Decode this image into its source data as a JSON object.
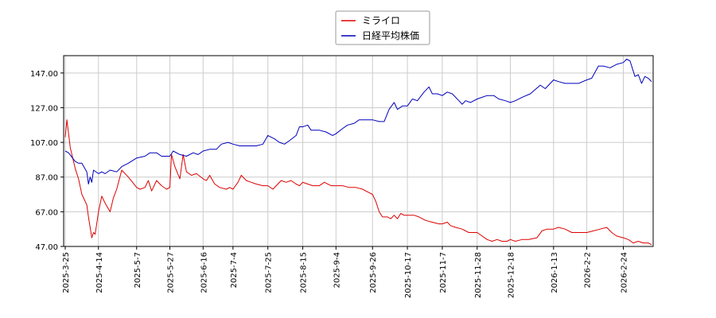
{
  "chart_data": {
    "type": "line",
    "title": "",
    "xlabel": "",
    "ylabel": "",
    "ylim": [
      47.0,
      157.0
    ],
    "yticks": [
      "47.00",
      "67.00",
      "87.00",
      "107.00",
      "127.00",
      "147.00"
    ],
    "xlim": [
      "2025-03-25",
      "2026-03-13"
    ],
    "xticks": [
      "2025-3-25",
      "2025-4-14",
      "2025-5-7",
      "2025-5-27",
      "2025-6-16",
      "2025-7-4",
      "2025-7-25",
      "2025-8-15",
      "2025-9-4",
      "2025-9-26",
      "2025-10-17",
      "2025-11-7",
      "2025-11-28",
      "2025-12-18",
      "2026-1-13",
      "2026-2-2",
      "2026-2-24"
    ],
    "grid": true,
    "legend_position": "top-center",
    "series": [
      {
        "name": "ミライロ",
        "color": "#dd0000",
        "points": [
          [
            "2025-03-25",
            110
          ],
          [
            "2025-03-26",
            120
          ],
          [
            "2025-03-28",
            104
          ],
          [
            "2025-03-31",
            92
          ],
          [
            "2025-04-02",
            86
          ],
          [
            "2025-04-04",
            77
          ],
          [
            "2025-04-07",
            71
          ],
          [
            "2025-04-08",
            64
          ],
          [
            "2025-04-09",
            58
          ],
          [
            "2025-04-10",
            52
          ],
          [
            "2025-04-11",
            55
          ],
          [
            "2025-04-12",
            54
          ],
          [
            "2025-04-14",
            67
          ],
          [
            "2025-04-16",
            76
          ],
          [
            "2025-04-18",
            72
          ],
          [
            "2025-04-21",
            67
          ],
          [
            "2025-04-23",
            75
          ],
          [
            "2025-04-25",
            80
          ],
          [
            "2025-04-28",
            91
          ],
          [
            "2025-05-02",
            87
          ],
          [
            "2025-05-07",
            81
          ],
          [
            "2025-05-09",
            80
          ],
          [
            "2025-05-12",
            81
          ],
          [
            "2025-05-14",
            85
          ],
          [
            "2025-05-16",
            79
          ],
          [
            "2025-05-19",
            85
          ],
          [
            "2025-05-22",
            82
          ],
          [
            "2025-05-25",
            80
          ],
          [
            "2025-05-27",
            81
          ],
          [
            "2025-05-28",
            100
          ],
          [
            "2025-05-30",
            93
          ],
          [
            "2025-06-02",
            86
          ],
          [
            "2025-06-04",
            100
          ],
          [
            "2025-06-06",
            90
          ],
          [
            "2025-06-09",
            88
          ],
          [
            "2025-06-12",
            89
          ],
          [
            "2025-06-16",
            86
          ],
          [
            "2025-06-18",
            85
          ],
          [
            "2025-06-20",
            88
          ],
          [
            "2025-06-23",
            83
          ],
          [
            "2025-06-26",
            81
          ],
          [
            "2025-06-30",
            80
          ],
          [
            "2025-07-02",
            81
          ],
          [
            "2025-07-04",
            80
          ],
          [
            "2025-07-07",
            84
          ],
          [
            "2025-07-09",
            88
          ],
          [
            "2025-07-12",
            85
          ],
          [
            "2025-07-15",
            84
          ],
          [
            "2025-07-18",
            83
          ],
          [
            "2025-07-22",
            82
          ],
          [
            "2025-07-25",
            82
          ],
          [
            "2025-07-28",
            80
          ],
          [
            "2025-07-30",
            82
          ],
          [
            "2025-08-02",
            85
          ],
          [
            "2025-08-05",
            84
          ],
          [
            "2025-08-08",
            85
          ],
          [
            "2025-08-11",
            83
          ],
          [
            "2025-08-13",
            82
          ],
          [
            "2025-08-15",
            84
          ],
          [
            "2025-08-18",
            83
          ],
          [
            "2025-08-21",
            82
          ],
          [
            "2025-08-25",
            82
          ],
          [
            "2025-08-28",
            84
          ],
          [
            "2025-09-01",
            82
          ],
          [
            "2025-09-04",
            82
          ],
          [
            "2025-09-08",
            82
          ],
          [
            "2025-09-12",
            81
          ],
          [
            "2025-09-16",
            81
          ],
          [
            "2025-09-20",
            80
          ],
          [
            "2025-09-24",
            78
          ],
          [
            "2025-09-26",
            77
          ],
          [
            "2025-09-28",
            73
          ],
          [
            "2025-09-30",
            67
          ],
          [
            "2025-10-02",
            64
          ],
          [
            "2025-10-05",
            64
          ],
          [
            "2025-10-07",
            63
          ],
          [
            "2025-10-09",
            65
          ],
          [
            "2025-10-11",
            63
          ],
          [
            "2025-10-13",
            66
          ],
          [
            "2025-10-15",
            65
          ],
          [
            "2025-10-17",
            65
          ],
          [
            "2025-10-21",
            65
          ],
          [
            "2025-10-24",
            64
          ],
          [
            "2025-10-28",
            62
          ],
          [
            "2025-11-01",
            61
          ],
          [
            "2025-11-05",
            60
          ],
          [
            "2025-11-07",
            60
          ],
          [
            "2025-11-10",
            61
          ],
          [
            "2025-11-12",
            59
          ],
          [
            "2025-11-15",
            58
          ],
          [
            "2025-11-19",
            57
          ],
          [
            "2025-11-23",
            55
          ],
          [
            "2025-11-28",
            55
          ],
          [
            "2025-12-01",
            53
          ],
          [
            "2025-12-04",
            51
          ],
          [
            "2025-12-07",
            50
          ],
          [
            "2025-12-10",
            51
          ],
          [
            "2025-12-13",
            50
          ],
          [
            "2025-12-16",
            50
          ],
          [
            "2025-12-18",
            51
          ],
          [
            "2025-12-21",
            50
          ],
          [
            "2025-12-25",
            51
          ],
          [
            "2025-12-29",
            51
          ],
          [
            "2026-01-03",
            52
          ],
          [
            "2026-01-06",
            56
          ],
          [
            "2026-01-09",
            57
          ],
          [
            "2026-01-13",
            57
          ],
          [
            "2026-01-16",
            58
          ],
          [
            "2026-01-20",
            57
          ],
          [
            "2026-01-24",
            55
          ],
          [
            "2026-01-28",
            55
          ],
          [
            "2026-02-02",
            55
          ],
          [
            "2026-02-06",
            56
          ],
          [
            "2026-02-10",
            57
          ],
          [
            "2026-02-14",
            58
          ],
          [
            "2026-02-17",
            55
          ],
          [
            "2026-02-20",
            53
          ],
          [
            "2026-02-24",
            52
          ],
          [
            "2026-02-27",
            51
          ],
          [
            "2026-03-02",
            49
          ],
          [
            "2026-03-05",
            50
          ],
          [
            "2026-03-08",
            49
          ],
          [
            "2026-03-11",
            49
          ],
          [
            "2026-03-13",
            48
          ]
        ]
      },
      {
        "name": "日経平均株価",
        "color": "#0000bb",
        "points": [
          [
            "2025-03-25",
            102
          ],
          [
            "2025-03-27",
            101
          ],
          [
            "2025-03-31",
            96
          ],
          [
            "2025-04-02",
            95
          ],
          [
            "2025-04-04",
            95
          ],
          [
            "2025-04-07",
            90
          ],
          [
            "2025-04-08",
            83
          ],
          [
            "2025-04-09",
            87
          ],
          [
            "2025-04-10",
            84
          ],
          [
            "2025-04-11",
            91
          ],
          [
            "2025-04-14",
            89
          ],
          [
            "2025-04-16",
            90
          ],
          [
            "2025-04-18",
            89
          ],
          [
            "2025-04-21",
            91
          ],
          [
            "2025-04-25",
            90
          ],
          [
            "2025-04-28",
            93
          ],
          [
            "2025-05-02",
            95
          ],
          [
            "2025-05-07",
            98
          ],
          [
            "2025-05-12",
            99
          ],
          [
            "2025-05-15",
            101
          ],
          [
            "2025-05-19",
            101
          ],
          [
            "2025-05-22",
            99
          ],
          [
            "2025-05-27",
            99
          ],
          [
            "2025-05-29",
            102
          ],
          [
            "2025-06-02",
            100
          ],
          [
            "2025-06-06",
            99
          ],
          [
            "2025-06-10",
            101
          ],
          [
            "2025-06-13",
            100
          ],
          [
            "2025-06-16",
            102
          ],
          [
            "2025-06-20",
            103
          ],
          [
            "2025-06-24",
            103
          ],
          [
            "2025-06-27",
            106
          ],
          [
            "2025-07-01",
            107
          ],
          [
            "2025-07-04",
            106
          ],
          [
            "2025-07-08",
            105
          ],
          [
            "2025-07-11",
            105
          ],
          [
            "2025-07-15",
            105
          ],
          [
            "2025-07-18",
            105
          ],
          [
            "2025-07-22",
            106
          ],
          [
            "2025-07-25",
            111
          ],
          [
            "2025-07-29",
            109
          ],
          [
            "2025-08-01",
            107
          ],
          [
            "2025-08-04",
            106
          ],
          [
            "2025-08-07",
            108
          ],
          [
            "2025-08-11",
            111
          ],
          [
            "2025-08-13",
            116
          ],
          [
            "2025-08-15",
            116
          ],
          [
            "2025-08-18",
            117
          ],
          [
            "2025-08-20",
            114
          ],
          [
            "2025-08-25",
            114
          ],
          [
            "2025-08-29",
            113
          ],
          [
            "2025-09-02",
            111
          ],
          [
            "2025-09-04",
            112
          ],
          [
            "2025-09-08",
            115
          ],
          [
            "2025-09-11",
            117
          ],
          [
            "2025-09-15",
            118
          ],
          [
            "2025-09-18",
            120
          ],
          [
            "2025-09-22",
            120
          ],
          [
            "2025-09-26",
            120
          ],
          [
            "2025-09-30",
            119
          ],
          [
            "2025-10-03",
            119
          ],
          [
            "2025-10-06",
            126
          ],
          [
            "2025-10-09",
            130
          ],
          [
            "2025-10-11",
            126
          ],
          [
            "2025-10-14",
            128
          ],
          [
            "2025-10-17",
            128
          ],
          [
            "2025-10-20",
            132
          ],
          [
            "2025-10-23",
            131
          ],
          [
            "2025-10-27",
            136
          ],
          [
            "2025-10-30",
            139
          ],
          [
            "2025-11-01",
            135
          ],
          [
            "2025-11-04",
            135
          ],
          [
            "2025-11-07",
            134
          ],
          [
            "2025-11-10",
            136
          ],
          [
            "2025-11-13",
            135
          ],
          [
            "2025-11-17",
            131
          ],
          [
            "2025-11-19",
            129
          ],
          [
            "2025-11-21",
            131
          ],
          [
            "2025-11-24",
            130
          ],
          [
            "2025-11-28",
            132
          ],
          [
            "2025-12-01",
            133
          ],
          [
            "2025-12-04",
            134
          ],
          [
            "2025-12-08",
            134
          ],
          [
            "2025-12-11",
            132
          ],
          [
            "2025-12-15",
            131
          ],
          [
            "2025-12-18",
            130
          ],
          [
            "2025-12-21",
            131
          ],
          [
            "2025-12-25",
            133
          ],
          [
            "2025-12-30",
            135
          ],
          [
            "2026-01-05",
            140
          ],
          [
            "2026-01-08",
            138
          ],
          [
            "2026-01-13",
            143
          ],
          [
            "2026-01-16",
            142
          ],
          [
            "2026-01-20",
            141
          ],
          [
            "2026-01-24",
            141
          ],
          [
            "2026-01-28",
            141
          ],
          [
            "2026-02-02",
            143
          ],
          [
            "2026-02-05",
            144
          ],
          [
            "2026-02-09",
            151
          ],
          [
            "2026-02-12",
            151
          ],
          [
            "2026-02-16",
            150
          ],
          [
            "2026-02-20",
            152
          ],
          [
            "2026-02-24",
            153
          ],
          [
            "2026-02-26",
            155
          ],
          [
            "2026-02-28",
            154
          ],
          [
            "2026-03-03",
            145
          ],
          [
            "2026-03-05",
            146
          ],
          [
            "2026-03-07",
            141
          ],
          [
            "2026-03-09",
            145
          ],
          [
            "2026-03-11",
            144
          ],
          [
            "2026-03-13",
            142
          ]
        ]
      }
    ]
  }
}
